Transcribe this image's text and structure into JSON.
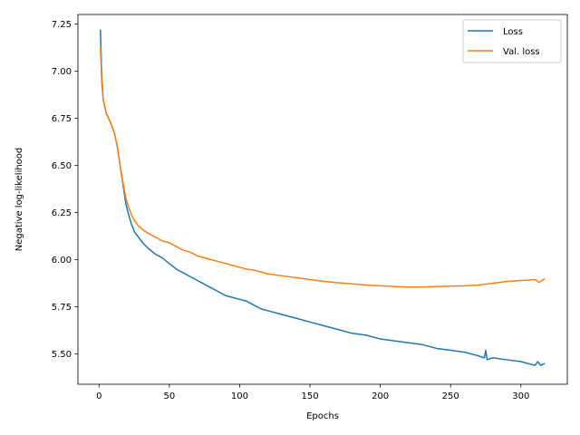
{
  "chart_data": {
    "type": "line",
    "title": "",
    "xlabel": "Epochs",
    "ylabel": "Negative log-likelihood",
    "xlim": [
      -15,
      333
    ],
    "ylim": [
      5.34,
      7.3
    ],
    "xticks": [
      0,
      50,
      100,
      150,
      200,
      250,
      300
    ],
    "yticks": [
      5.5,
      5.75,
      6.0,
      6.25,
      6.5,
      6.75,
      7.0,
      7.25
    ],
    "grid": false,
    "legend_position": "top-right",
    "series": [
      {
        "name": "Loss",
        "color": "#1f77b4",
        "x": [
          1,
          2,
          3,
          5,
          8,
          11,
          13,
          15,
          17,
          19,
          21,
          23,
          25,
          28,
          31,
          35,
          40,
          45,
          50,
          55,
          60,
          65,
          70,
          75,
          80,
          85,
          90,
          95,
          100,
          105,
          110,
          115,
          120,
          130,
          140,
          150,
          160,
          170,
          180,
          190,
          200,
          210,
          220,
          230,
          240,
          250,
          260,
          270,
          274,
          275,
          276,
          280,
          290,
          300,
          305,
          310,
          312,
          314,
          317
        ],
        "y": [
          7.22,
          6.96,
          6.85,
          6.78,
          6.73,
          6.67,
          6.6,
          6.5,
          6.4,
          6.3,
          6.24,
          6.19,
          6.15,
          6.12,
          6.09,
          6.06,
          6.03,
          6.01,
          5.98,
          5.95,
          5.93,
          5.91,
          5.89,
          5.87,
          5.85,
          5.83,
          5.81,
          5.8,
          5.79,
          5.78,
          5.76,
          5.74,
          5.73,
          5.71,
          5.69,
          5.67,
          5.65,
          5.63,
          5.61,
          5.6,
          5.58,
          5.57,
          5.56,
          5.55,
          5.53,
          5.52,
          5.51,
          5.49,
          5.48,
          5.52,
          5.47,
          5.48,
          5.47,
          5.46,
          5.45,
          5.44,
          5.46,
          5.44,
          5.45
        ]
      },
      {
        "name": "Val. loss",
        "color": "#ff7f0e",
        "x": [
          1,
          2,
          3,
          5,
          8,
          11,
          13,
          15,
          17,
          19,
          21,
          23,
          25,
          28,
          31,
          35,
          40,
          45,
          50,
          55,
          60,
          65,
          70,
          75,
          80,
          85,
          90,
          95,
          100,
          105,
          110,
          115,
          120,
          130,
          140,
          150,
          160,
          170,
          180,
          190,
          200,
          210,
          220,
          230,
          240,
          250,
          260,
          270,
          280,
          290,
          300,
          305,
          310,
          313,
          317
        ],
        "y": [
          7.13,
          6.93,
          6.85,
          6.78,
          6.73,
          6.67,
          6.6,
          6.5,
          6.41,
          6.33,
          6.28,
          6.24,
          6.21,
          6.18,
          6.16,
          6.14,
          6.12,
          6.1,
          6.09,
          6.07,
          6.05,
          6.04,
          6.02,
          6.01,
          6.0,
          5.99,
          5.98,
          5.97,
          5.96,
          5.95,
          5.945,
          5.935,
          5.925,
          5.915,
          5.905,
          5.895,
          5.885,
          5.878,
          5.872,
          5.866,
          5.862,
          5.858,
          5.855,
          5.856,
          5.858,
          5.86,
          5.862,
          5.866,
          5.875,
          5.885,
          5.89,
          5.892,
          5.895,
          5.88,
          5.9
        ]
      }
    ]
  }
}
